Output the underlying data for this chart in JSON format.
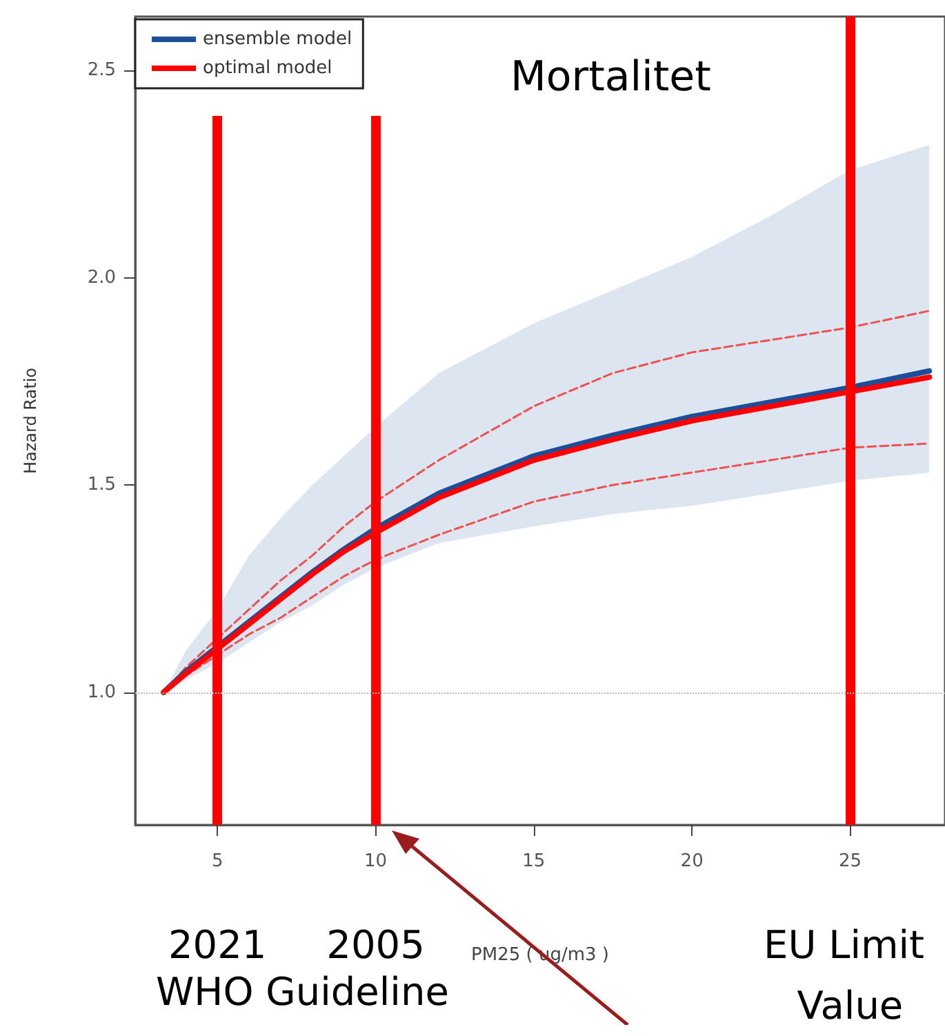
{
  "chart_data": {
    "type": "line",
    "title": "Mortalitet",
    "xlabel": "PM25 ( ug/m3 )",
    "ylabel": "Hazard Ratio",
    "x": [
      3.3,
      4,
      5,
      6,
      7,
      8,
      9,
      10,
      12,
      15,
      17.5,
      20,
      22.5,
      25,
      27.5
    ],
    "series": [
      {
        "name": "ensemble model",
        "color": "#1c4f9a",
        "values": [
          1.0,
          1.05,
          1.11,
          1.17,
          1.23,
          1.29,
          1.345,
          1.395,
          1.48,
          1.57,
          1.62,
          1.665,
          1.7,
          1.735,
          1.775
        ],
        "lower": [
          1.0,
          1.03,
          1.07,
          1.12,
          1.17,
          1.21,
          1.26,
          1.3,
          1.36,
          1.4,
          1.43,
          1.45,
          1.48,
          1.51,
          1.53
        ],
        "upper": [
          1.0,
          1.1,
          1.2,
          1.33,
          1.42,
          1.5,
          1.57,
          1.64,
          1.77,
          1.89,
          1.97,
          2.05,
          2.15,
          2.26,
          2.32
        ]
      },
      {
        "name": "optimal model",
        "color": "#ff0000",
        "values": [
          1.0,
          1.045,
          1.105,
          1.165,
          1.225,
          1.285,
          1.34,
          1.385,
          1.47,
          1.56,
          1.61,
          1.655,
          1.69,
          1.725,
          1.76
        ]
      },
      {
        "color": "#f05050",
        "line_style": "dashed",
        "values": [
          1.0,
          1.06,
          1.13,
          1.2,
          1.27,
          1.33,
          1.4,
          1.46,
          1.56,
          1.69,
          1.77,
          1.82,
          1.85,
          1.88,
          1.92
        ]
      },
      {
        "color": "#f05050",
        "line_style": "dashed",
        "values": [
          1.0,
          1.04,
          1.09,
          1.14,
          1.18,
          1.23,
          1.28,
          1.32,
          1.38,
          1.46,
          1.5,
          1.53,
          1.56,
          1.59,
          1.6
        ]
      }
    ],
    "xlim": [
      2.4,
      28
    ],
    "ylim": [
      0.68,
      2.63
    ],
    "xticks": [
      5,
      10,
      15,
      20,
      25
    ],
    "yticks": [
      {
        "value": 1,
        "label": "1.0"
      },
      {
        "value": 1.5,
        "label": "1.5"
      },
      {
        "value": 2,
        "label": "2.0"
      },
      {
        "value": 2.5,
        "label": "2.5"
      }
    ],
    "ref_lines": [
      {
        "axis": "x",
        "value": 5,
        "color": "#ff0000"
      },
      {
        "axis": "x",
        "value": 10,
        "color": "#ff0000"
      },
      {
        "axis": "x",
        "value": 25,
        "color": "#ff0000"
      },
      {
        "axis": "y",
        "value": 1,
        "color": "#bbbbbb",
        "line_style": "dotted"
      }
    ],
    "annotations": [
      "2021",
      "2005",
      "EU Limit Value",
      "WHO Guideline"
    ],
    "marker": "none",
    "line_style": "solid",
    "grid": false,
    "legend": "top left"
  }
}
